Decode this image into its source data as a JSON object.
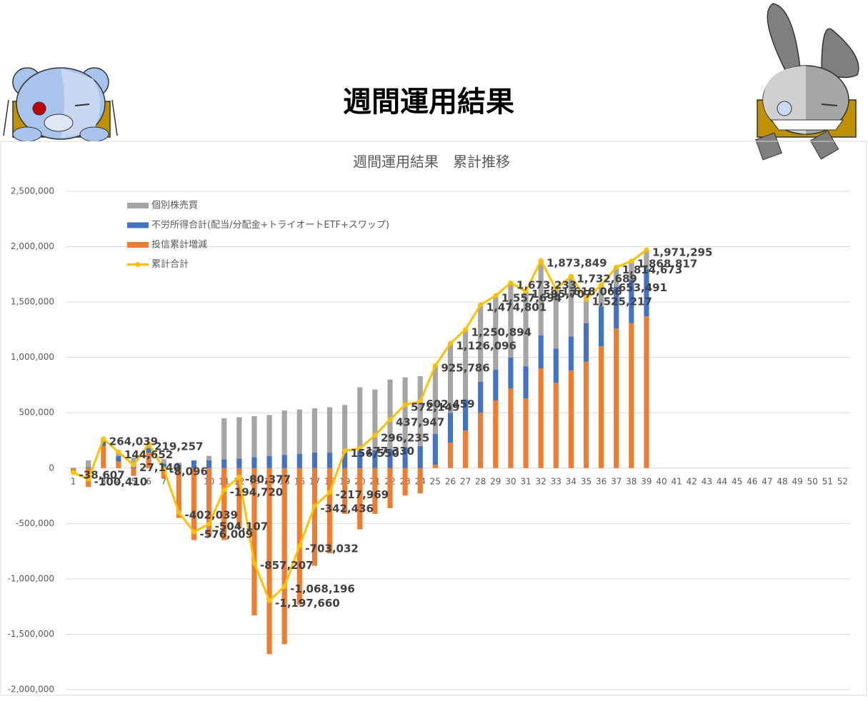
{
  "page_title": "週間運用結果",
  "chart_data": {
    "type": "bar",
    "title": "週間運用結果　累計推移",
    "categories": [
      1,
      2,
      3,
      4,
      5,
      6,
      7,
      8,
      9,
      10,
      11,
      12,
      13,
      14,
      15,
      16,
      17,
      18,
      19,
      20,
      21,
      22,
      23,
      24,
      25,
      26,
      27,
      28,
      29,
      30,
      31,
      32,
      33,
      34,
      35,
      36,
      37,
      38,
      39,
      40,
      41,
      42,
      43,
      44,
      45,
      46,
      47,
      48,
      49,
      50,
      51,
      52
    ],
    "ylim": [
      -2000000,
      2500000
    ],
    "yticks": [
      {
        "value": -2000000,
        "label": "-2,000,000"
      },
      {
        "value": -1500000,
        "label": "-1,500,000"
      },
      {
        "value": -1000000,
        "label": "-1,000,000"
      },
      {
        "value": -500000,
        "label": "-500,000"
      },
      0,
      {
        "value": 500000,
        "label": "500,000"
      },
      {
        "value": 1000000,
        "label": "1,000,000"
      },
      {
        "value": 1500000,
        "label": "1,500,000"
      },
      {
        "value": 2000000,
        "label": "2,000,000"
      },
      {
        "value": 2500000,
        "label": "2,500,000"
      }
    ],
    "grid": true,
    "legend": "upper-left",
    "stacked": true,
    "series": [
      {
        "name": "個別株売買",
        "type": "bar",
        "color": "#a5a5a5",
        "values": [
          0,
          60000,
          25000,
          35000,
          67000,
          40000,
          40000,
          20000,
          0,
          40000,
          370000,
          375000,
          370000,
          370000,
          400000,
          400000,
          400000,
          410000,
          420000,
          580000,
          550000,
          630000,
          630000,
          630000,
          615000,
          626000,
          630000,
          695000,
          668000,
          673000,
          676000,
          674000,
          538000,
          543000,
          215000,
          193000,
          175000,
          169000,
          171000,
          null,
          null,
          null,
          null,
          null,
          null,
          null,
          null,
          null,
          null,
          null,
          null,
          null
        ]
      },
      {
        "name": "不労所得合計(配当/分配金+トライオートETF+スワップ)",
        "type": "bar",
        "color": "#4472c4",
        "values": [
          2000,
          10000,
          40000,
          50000,
          30000,
          40000,
          40000,
          30000,
          70000,
          70000,
          80000,
          85000,
          100000,
          110000,
          120000,
          130000,
          140000,
          140000,
          150000,
          150000,
          160000,
          170000,
          190000,
          200000,
          280000,
          270000,
          280000,
          280000,
          280000,
          280000,
          290000,
          300000,
          310000,
          310000,
          350000,
          360000,
          380000,
          390000,
          430000,
          null,
          null,
          null,
          null,
          null,
          null,
          null,
          null,
          null,
          null,
          null,
          null,
          null
        ]
      },
      {
        "name": "投信累計増減",
        "type": "bar",
        "color": "#ed7d31",
        "values": [
          -40000,
          -170000,
          200000,
          60000,
          -70000,
          140000,
          -90000,
          -450000,
          -650000,
          -620000,
          -650000,
          -540000,
          -1330000,
          -1680000,
          -1590000,
          -1233000,
          -882000,
          -768000,
          -413000,
          -553000,
          -414000,
          -362000,
          -248000,
          -228000,
          30000,
          230000,
          340000,
          500000,
          610000,
          720000,
          630000,
          900000,
          770000,
          880000,
          960000,
          1100000,
          1260000,
          1310000,
          1370000,
          null,
          null,
          null,
          null,
          null,
          null,
          null,
          null,
          null,
          null,
          null,
          null,
          null
        ]
      },
      {
        "name": "累計合計",
        "type": "line",
        "color": "#ffc000",
        "values": [
          -38607,
          -100410,
          264039,
          144652,
          27140,
          219257,
          -8096,
          -402039,
          -576009,
          -504107,
          -194720,
          -80377,
          -857207,
          -1197660,
          -1068196,
          -703032,
          -342436,
          -217969,
          156550,
          177330,
          296235,
          437947,
          572149,
          602459,
          925786,
          1126096,
          1250894,
          1474801,
          1557694,
          1673233,
          1595707,
          1873849,
          1618066,
          1732689,
          1525217,
          1653491,
          1814673,
          1868817,
          1971295,
          null,
          null,
          null,
          null,
          null,
          null,
          null,
          null,
          null,
          null,
          null,
          null,
          null
        ],
        "value_labels": [
          "-38,607",
          "-100,410",
          "264,039",
          "144,652",
          "27,140",
          "219,257",
          "-8,096",
          "-402,039",
          "-576,009",
          "-504,107",
          "-194,720",
          "-80,377",
          "-857,207",
          "-1,197,660",
          "-1,068,196",
          "-703,032",
          "-342,436",
          "-217,969",
          "156,550",
          "177,330",
          "296,235",
          "437,947",
          "572,149",
          "602,459",
          "925,786",
          "1,126,096",
          "1,250,894",
          "1,474,801",
          "1,557,694",
          "1,673,233",
          "1,595,707",
          "1,873,849",
          "1,618,066",
          "1,732,689",
          "1,525,217",
          "1,653,491",
          "1,814,673",
          "1,868,817",
          "1,971,295",
          null,
          null,
          null,
          null,
          null,
          null,
          null,
          null,
          null,
          null,
          null,
          null,
          null
        ]
      }
    ]
  }
}
